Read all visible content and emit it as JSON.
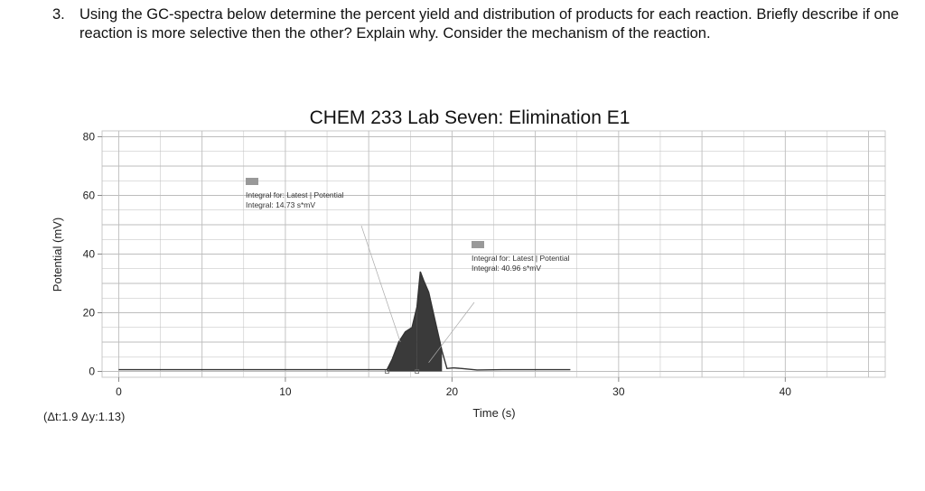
{
  "question": {
    "number": "3.",
    "text": "Using the GC-spectra below determine the percent yield and distribution of products for each reaction. Briefly describe if one reaction is more selective then the other? Explain why. Consider the mechanism of the reaction."
  },
  "chart_data": {
    "type": "line",
    "title": "CHEM 233 Lab Seven: Elimination E1",
    "xlabel": "Time (s)",
    "ylabel": "Potential (mV)",
    "xlim": [
      -1,
      46
    ],
    "ylim": [
      -2,
      82
    ],
    "xticks": [
      0,
      10,
      20,
      30,
      40
    ],
    "yticks": [
      0,
      20,
      40,
      60,
      80
    ],
    "grid": true,
    "series": [
      {
        "x": [
          0,
          5,
          10,
          15,
          16.1,
          16.4,
          16.8,
          17.2,
          17.6,
          17.9,
          18.1,
          18.3,
          18.6,
          19.0,
          19.4,
          19.7,
          20.1,
          20.6,
          21.5,
          23,
          25,
          27.1
        ],
        "y": [
          0.6,
          0.6,
          0.6,
          0.6,
          0.6,
          4,
          10,
          13.5,
          15,
          22,
          34,
          31,
          27,
          17,
          7,
          1,
          1.2,
          1.0,
          0.5,
          0.6,
          0.6,
          0.6
        ]
      }
    ],
    "integrals": [
      {
        "line1": "Integral for: Latest | Potential",
        "line2": "Integral: 14.73 s*mV",
        "from": 16.1,
        "to": 17.9
      },
      {
        "line1": "Integral for: Latest | Potential",
        "line2": "Integral: 40.96 s*mV",
        "from": 17.9,
        "to": 19.4
      }
    ],
    "colors": {
      "trace": "#333333",
      "fill": "#3a3a3a",
      "grid": "#bdbdbd",
      "frame": "#c9c9c9"
    }
  },
  "readout": "(Δt:1.9 Δy:1.13)"
}
